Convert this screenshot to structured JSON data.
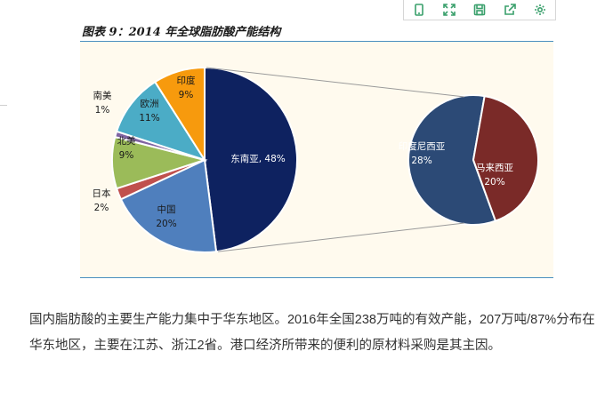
{
  "toolbar": {
    "buttons": [
      {
        "name": "phone-icon"
      },
      {
        "name": "expand-icon"
      },
      {
        "name": "save-icon"
      },
      {
        "name": "share-icon"
      },
      {
        "name": "gear-icon"
      }
    ]
  },
  "caption": "图表 9：2014 年全球脂肪酸产能结构",
  "chart_data": {
    "type": "pie",
    "main_pie": [
      {
        "label": "东南亚, 48%",
        "name": "东南亚",
        "value": 48,
        "color": "#0e2260",
        "label_color": "#ffffff"
      },
      {
        "label": "中国",
        "value_label": "20%",
        "name": "中国",
        "value": 20,
        "color": "#4f7fbd",
        "label_color": "#1a1a1a"
      },
      {
        "label": "日本",
        "value_label": "2%",
        "name": "日本",
        "value": 2,
        "color": "#c0504d",
        "label_color": "#1a1a1a"
      },
      {
        "label": "北美",
        "value_label": "9%",
        "name": "北美",
        "value": 9,
        "color": "#9bbb59",
        "label_color": "#1a1a1a"
      },
      {
        "label": "南美",
        "value_label": "1%",
        "name": "南美",
        "value": 1,
        "color": "#8064a2",
        "label_color": "#1a1a1a"
      },
      {
        "label": "欧洲",
        "value_label": "11%",
        "name": "欧洲",
        "value": 11,
        "color": "#4bacc6",
        "label_color": "#1a1a1a"
      },
      {
        "label": "印度",
        "value_label": "9%",
        "name": "印度",
        "value": 9,
        "color": "#f79a0d",
        "label_color": "#1a1a1a"
      }
    ],
    "secondary_pie": [
      {
        "label": "印度尼西亚",
        "value_label": "28%",
        "name": "印度尼西亚",
        "value": 28,
        "color": "#2c4a76",
        "label_color": "#ffffff"
      },
      {
        "label": "马来西亚",
        "value_label": "20%",
        "name": "马来西亚",
        "value": 20,
        "color": "#7a2a28",
        "label_color": "#ffffff"
      }
    ]
  },
  "body_text": "国内脂肪酸的主要生产能力集中于华东地区。2016年全国238万吨的有效产能，207万吨/87%分布在华东地区，主要在江苏、浙江2省。港口经济所带来的便利的原材料采购是其主因。"
}
